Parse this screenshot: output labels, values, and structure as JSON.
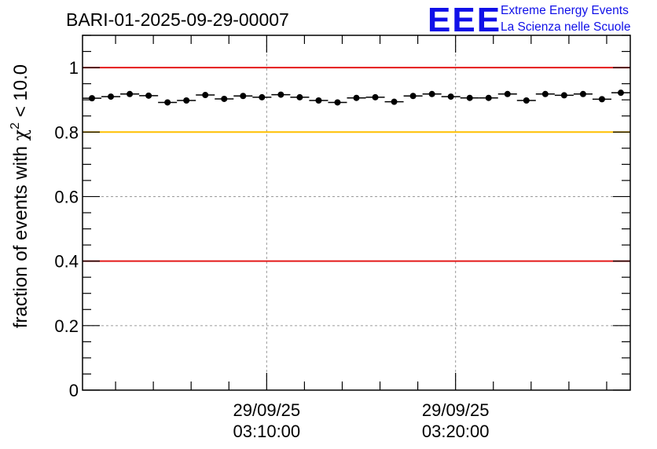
{
  "chart_data": {
    "type": "scatter",
    "title": "BARI-01-2025-09-29-00007",
    "ylabel": "fraction of events with χ² < 10.0",
    "ylabel_parts": {
      "pre": "fraction of events with ",
      "chi": "χ",
      "sup": "2",
      "post": " < 10.0"
    },
    "xlabel": "",
    "ylim": [
      0,
      1.1
    ],
    "yticks": [
      {
        "value": 0,
        "label": "0"
      },
      {
        "value": 0.2,
        "label": "0.2"
      },
      {
        "value": 0.4,
        "label": "0.4"
      },
      {
        "value": 0.6,
        "label": "0.6"
      },
      {
        "value": 0.8,
        "label": "0.8"
      },
      {
        "value": 1,
        "label": "1"
      }
    ],
    "xlim_minutes": [
      -9.75,
      19.25
    ],
    "xticks": [
      {
        "minute": 0,
        "date": "29/09/25",
        "time": "03:10:00"
      },
      {
        "minute": 10,
        "date": "29/09/25",
        "time": "03:20:00"
      }
    ],
    "bin_width_minutes": 1,
    "x_minutes": [
      -9.25,
      -8.25,
      -7.25,
      -6.25,
      -5.25,
      -4.25,
      -3.25,
      -2.25,
      -1.25,
      -0.25,
      0.75,
      1.75,
      2.75,
      3.75,
      4.75,
      5.75,
      6.75,
      7.75,
      8.75,
      9.75,
      10.75,
      11.75,
      12.75,
      13.75,
      14.75,
      15.75,
      16.75,
      17.75,
      18.75
    ],
    "values": [
      0.905,
      0.91,
      0.918,
      0.913,
      0.892,
      0.898,
      0.915,
      0.903,
      0.912,
      0.908,
      0.916,
      0.908,
      0.898,
      0.892,
      0.906,
      0.908,
      0.894,
      0.912,
      0.918,
      0.91,
      0.906,
      0.906,
      0.918,
      0.898,
      0.918,
      0.914,
      0.918,
      0.902,
      0.922
    ],
    "reference_lines": [
      {
        "value": 1.0,
        "color": "#e41a1a"
      },
      {
        "value": 0.8,
        "color": "#ffc000"
      },
      {
        "value": 0.4,
        "color": "#e41a1a"
      }
    ],
    "grid": true,
    "marker_color": "#000000"
  },
  "logo": {
    "mark": "EEE",
    "line1": "Extreme Energy Events",
    "line2": "La Scienza nelle Scuole",
    "color": "#1010e8"
  }
}
